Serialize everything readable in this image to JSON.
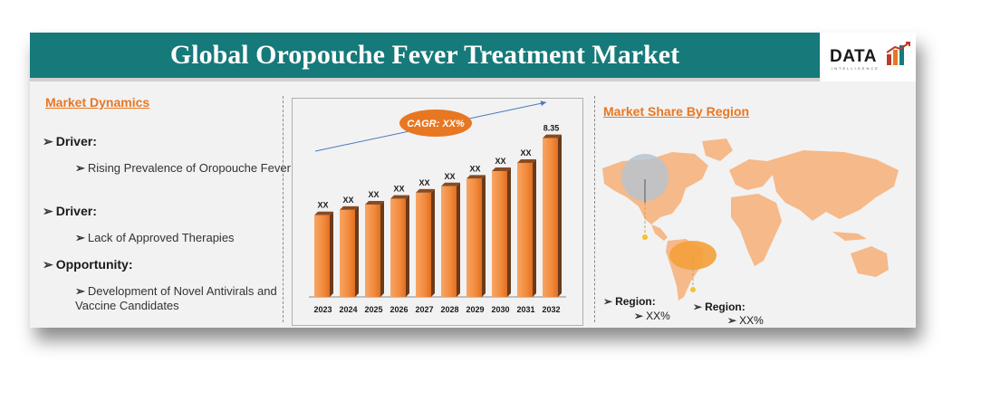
{
  "header": {
    "title": "Global Oropouche Fever Treatment Market"
  },
  "logo": {
    "text": "DATA",
    "subtext": "INTELLIGENCE",
    "colors": [
      "#c0392b",
      "#e87722",
      "#16797a"
    ]
  },
  "dynamics": {
    "heading": "Market Dynamics",
    "items": [
      {
        "type": "Driver:",
        "detail": "Rising Prevalence of Oropouche Fever"
      },
      {
        "type": "Driver:",
        "detail": "Lack of Approved Therapies"
      },
      {
        "type": "Opportunity:",
        "detail": "Development of Novel Antivirals and Vaccine Candidates"
      }
    ]
  },
  "chart_data": {
    "type": "bar",
    "categories": [
      "2023",
      "2024",
      "2025",
      "2026",
      "2027",
      "2028",
      "2029",
      "2030",
      "2031",
      "2032"
    ],
    "values": [
      4.3,
      4.58,
      4.86,
      5.16,
      5.48,
      5.82,
      6.22,
      6.62,
      7.05,
      8.35
    ],
    "data_labels": [
      "XX",
      "XX",
      "XX",
      "XX",
      "XX",
      "XX",
      "XX",
      "XX",
      "XX",
      "8.35"
    ],
    "annotation": "CAGR: XX%",
    "ylim": [
      0,
      9
    ],
    "grid": false,
    "bar_color": "#f28a3c"
  },
  "regions": {
    "heading": "Market Share By Region",
    "items": [
      {
        "label": "Region:",
        "value": "XX%"
      },
      {
        "label": "Region:",
        "value": "XX%"
      }
    ]
  },
  "colors": {
    "header": "#16797a",
    "accent": "#e87722",
    "map": "#f5b98a",
    "highlight": "#f4a03a"
  }
}
